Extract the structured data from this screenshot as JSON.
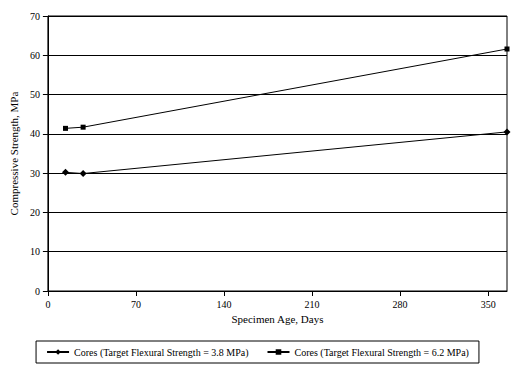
{
  "chart_data": {
    "type": "line",
    "x_label": "Specimen Age, Days",
    "y_label": "Compressive Strength, MPa",
    "xlim": [
      0,
      365
    ],
    "xticks": [
      0,
      70,
      140,
      210,
      280,
      350
    ],
    "ylim": [
      0,
      70
    ],
    "yticks": [
      0,
      10,
      20,
      30,
      40,
      50,
      60,
      70
    ],
    "grid": true,
    "legend": "bottom",
    "series": [
      {
        "name": "Cores (Target Flexural Strength = 3.8 MPa)",
        "color": "#000000",
        "marker": "diamond",
        "x": [
          14,
          28,
          365
        ],
        "values": [
          30.2,
          29.9,
          40.5
        ]
      },
      {
        "name": "Cores (Target Flexural Strength = 6.2 MPa)",
        "color": "#000000",
        "marker": "square",
        "x": [
          14,
          28,
          365
        ],
        "values": [
          41.4,
          41.7,
          61.6
        ]
      }
    ]
  }
}
